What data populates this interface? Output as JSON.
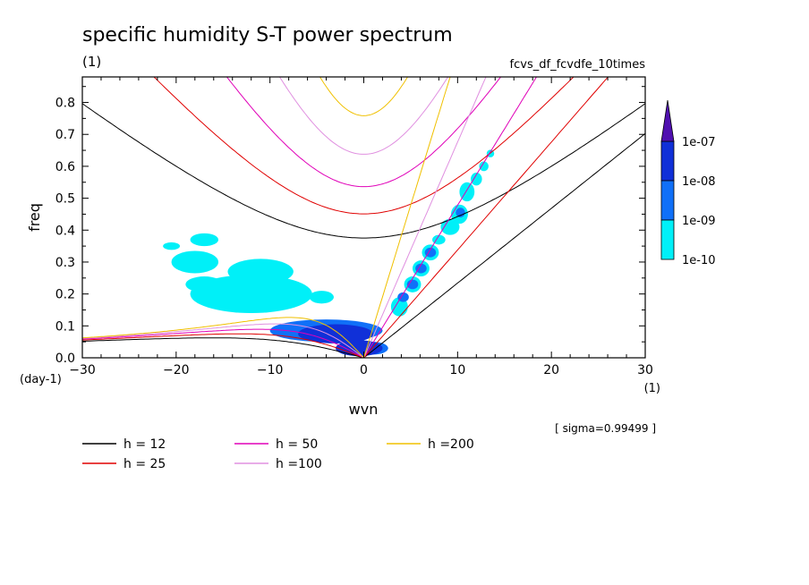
{
  "chart_data": {
    "type": "contour",
    "title": "specific humidity S-T power spectrum",
    "subtitle_left": "(1)",
    "subtitle_right": "fcvs_df_fcvdfe_10times",
    "xlabel": "wvn",
    "ylabel": "freq",
    "x_unit": "(1)",
    "y_unit": "(day-1)",
    "xlim": [
      -30,
      30
    ],
    "ylim": [
      0,
      0.88
    ],
    "x_ticks": [
      -30,
      -20,
      -10,
      0,
      10,
      20,
      30
    ],
    "y_ticks": [
      0.0,
      0.1,
      0.2,
      0.3,
      0.4,
      0.5,
      0.6,
      0.7,
      0.8
    ],
    "sigma_note": "[ sigma=0.99499 ]",
    "colorbar": {
      "levels": [
        "1e-10",
        "1e-09",
        "1e-08",
        "1e-07"
      ],
      "colors": [
        "#00f0f8",
        "#1070f8",
        "#1030d8",
        "#5010b0"
      ]
    },
    "dispersion_curves": [
      {
        "label": "h = 12",
        "h": 12,
        "color": "#000000"
      },
      {
        "label": "h = 25",
        "h": 25,
        "color": "#e00000"
      },
      {
        "label": "h = 50",
        "h": 50,
        "color": "#e000b8"
      },
      {
        "label": "h =100",
        "h": 100,
        "color": "#e090e0"
      },
      {
        "label": "h =200",
        "h": 200,
        "color": "#f0c000"
      }
    ],
    "power_patches": [
      {
        "x": -4.0,
        "y": 0.085,
        "rx": 6.0,
        "ry": 0.035,
        "level": 1
      },
      {
        "x": -3.0,
        "y": 0.075,
        "rx": 4.0,
        "ry": 0.03,
        "level": 2
      },
      {
        "x": -0.5,
        "y": 0.03,
        "rx": 2.5,
        "ry": 0.025,
        "level": 2
      },
      {
        "x": 1.0,
        "y": 0.03,
        "rx": 1.6,
        "ry": 0.02,
        "level": 1
      },
      {
        "x": -12.0,
        "y": 0.2,
        "rx": 6.5,
        "ry": 0.06,
        "level": 0
      },
      {
        "x": -11.0,
        "y": 0.27,
        "rx": 3.5,
        "ry": 0.04,
        "level": 0
      },
      {
        "x": -18.0,
        "y": 0.3,
        "rx": 2.5,
        "ry": 0.035,
        "level": 0
      },
      {
        "x": -17.0,
        "y": 0.37,
        "rx": 1.5,
        "ry": 0.02,
        "level": 0
      },
      {
        "x": -20.5,
        "y": 0.35,
        "rx": 0.9,
        "ry": 0.012,
        "level": 0
      },
      {
        "x": -17.0,
        "y": 0.23,
        "rx": 2.0,
        "ry": 0.025,
        "level": 0
      },
      {
        "x": -4.5,
        "y": 0.19,
        "rx": 1.3,
        "ry": 0.02,
        "level": 0
      },
      {
        "x": 3.8,
        "y": 0.16,
        "rx": 0.9,
        "ry": 0.03,
        "level": 0
      },
      {
        "x": 4.2,
        "y": 0.19,
        "rx": 0.6,
        "ry": 0.015,
        "level": 1
      },
      {
        "x": 5.2,
        "y": 0.23,
        "rx": 0.9,
        "ry": 0.025,
        "level": 0
      },
      {
        "x": 5.2,
        "y": 0.23,
        "rx": 0.6,
        "ry": 0.015,
        "level": 1
      },
      {
        "x": 6.1,
        "y": 0.28,
        "rx": 0.9,
        "ry": 0.025,
        "level": 0
      },
      {
        "x": 6.1,
        "y": 0.28,
        "rx": 0.6,
        "ry": 0.015,
        "level": 1
      },
      {
        "x": 7.1,
        "y": 0.33,
        "rx": 0.9,
        "ry": 0.025,
        "level": 0
      },
      {
        "x": 7.1,
        "y": 0.33,
        "rx": 0.6,
        "ry": 0.015,
        "level": 1
      },
      {
        "x": 8.0,
        "y": 0.37,
        "rx": 0.7,
        "ry": 0.015,
        "level": 0
      },
      {
        "x": 9.2,
        "y": 0.41,
        "rx": 1.0,
        "ry": 0.025,
        "level": 0
      },
      {
        "x": 10.2,
        "y": 0.45,
        "rx": 0.9,
        "ry": 0.03,
        "level": 0
      },
      {
        "x": 10.3,
        "y": 0.455,
        "rx": 0.5,
        "ry": 0.015,
        "level": 1
      },
      {
        "x": 11.0,
        "y": 0.52,
        "rx": 0.8,
        "ry": 0.03,
        "level": 0
      },
      {
        "x": 12.0,
        "y": 0.56,
        "rx": 0.6,
        "ry": 0.02,
        "level": 0
      },
      {
        "x": 12.8,
        "y": 0.6,
        "rx": 0.5,
        "ry": 0.015,
        "level": 0
      },
      {
        "x": 13.5,
        "y": 0.64,
        "rx": 0.4,
        "ry": 0.012,
        "level": 0
      }
    ]
  }
}
